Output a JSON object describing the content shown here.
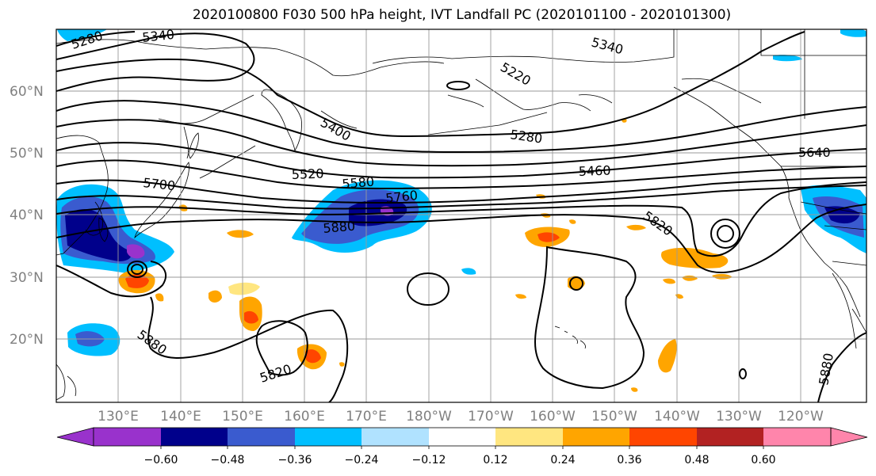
{
  "title": "2020100800 F030 500 hPa height, IVT Landfall PC (2020101100 - 2020101300)",
  "lat_labels": [
    "60°N",
    "50°N",
    "40°N",
    "30°N",
    "20°N"
  ],
  "lon_labels": [
    "130°E",
    "140°E",
    "150°E",
    "160°E",
    "170°E",
    "180°W",
    "170°W",
    "160°W",
    "150°W",
    "140°W",
    "130°W",
    "120°W"
  ],
  "colorbar": {
    "ticks": [
      "−0.60",
      "−0.48",
      "−0.36",
      "−0.24",
      "−0.12",
      "0.12",
      "0.24",
      "0.36",
      "0.48",
      "0.60"
    ],
    "colors": [
      "#9932cc",
      "#00008b",
      "#3a5bcf",
      "#00bfff",
      "#b0e2ff",
      "#ffffff",
      "#ffe680",
      "#ffa500",
      "#ff4500",
      "#b22222",
      "#ff85ab"
    ]
  },
  "contour_labels": [
    "5280",
    "5340",
    "5340",
    "5220",
    "5400",
    "5280",
    "5640",
    "5520",
    "5580",
    "5700",
    "5760",
    "5460",
    "5880",
    "5820",
    "5880",
    "5820",
    "5880"
  ]
}
